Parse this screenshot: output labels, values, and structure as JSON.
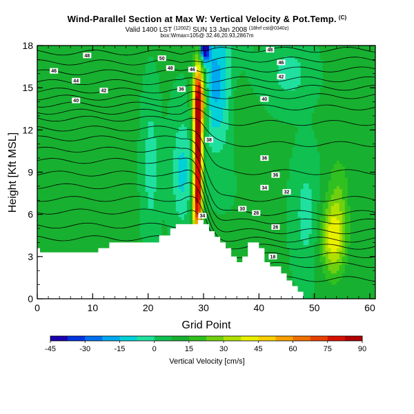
{
  "header": {
    "title": "Wind-Parallel Section at Max W: Vertical Velocity & Pot.Temp.",
    "title_mark": "(C)",
    "valid_prefix": "Valid 1400 LST",
    "valid_utc": "(1200Z)",
    "valid_date": "SUN 13 Jan 2008",
    "valid_cycle": "(18hrf cst@0340z)",
    "sub_line": "box:Wmax=105@ 32.46,20.93,2867m"
  },
  "colors": {
    "bg": "#ffffff",
    "terrain": "#ffffff",
    "contour": "#000000",
    "field_base": "#12b02e"
  },
  "chart_data": {
    "type": "heatmap",
    "title": "Wind-Parallel Section at Max W: Vertical Velocity & Pot.Temp.",
    "xlabel": "Grid Point",
    "ylabel": "Height [Kft MSL]",
    "xlim": [
      0,
      61
    ],
    "ylim": [
      0,
      18
    ],
    "xticks": [
      "0",
      "10",
      "20",
      "30",
      "40",
      "50",
      "60"
    ],
    "yticks": [
      "0",
      "3",
      "6",
      "9",
      "12",
      "15",
      "18"
    ],
    "colorbar": {
      "label": "Vertical Velocity [cm/s]",
      "min": -45,
      "max": 90,
      "ticks": [
        "-45",
        "-30",
        "-15",
        "0",
        "15",
        "30",
        "45",
        "60",
        "75",
        "90"
      ],
      "colors": [
        "#1a00b0",
        "#0033e0",
        "#0070f0",
        "#00a8f0",
        "#00d0d8",
        "#20e0a0",
        "#10c050",
        "#18b030",
        "#30c020",
        "#70d010",
        "#b0e000",
        "#e8f000",
        "#f8d000",
        "#f8a000",
        "#f07000",
        "#e84000",
        "#d81000",
        "#b00000"
      ]
    },
    "field": {
      "background": 8,
      "blobs": [
        {
          "x": 29.0,
          "y": 11.0,
          "sx": 0.55,
          "sy": 3.4,
          "amp": 88
        },
        {
          "x": 29.4,
          "y": 14.4,
          "sx": 0.9,
          "sy": 1.6,
          "amp": 42
        },
        {
          "x": 28.8,
          "y": 6.5,
          "sx": 0.6,
          "sy": 1.4,
          "amp": 40
        },
        {
          "x": 53.4,
          "y": 4.2,
          "sx": 1.5,
          "sy": 1.8,
          "amp": 32
        },
        {
          "x": 54.4,
          "y": 7.2,
          "sx": 1.4,
          "sy": 2.4,
          "amp": 12
        },
        {
          "x": 30.2,
          "y": 17.8,
          "sx": 0.5,
          "sy": 0.6,
          "amp": -60
        },
        {
          "x": 31.5,
          "y": 15.5,
          "sx": 1.6,
          "sy": 3.2,
          "amp": -22
        },
        {
          "x": 34.5,
          "y": 15.2,
          "sx": 1.8,
          "sy": 3.5,
          "amp": -14
        },
        {
          "x": 26.2,
          "y": 9.0,
          "sx": 1.3,
          "sy": 2.6,
          "amp": -18
        },
        {
          "x": 20.5,
          "y": 9.5,
          "sx": 0.9,
          "sy": 3.0,
          "amp": -14
        },
        {
          "x": 45.5,
          "y": 16.0,
          "sx": 2.4,
          "sy": 1.4,
          "amp": -12
        },
        {
          "x": 35.8,
          "y": 13.8,
          "sx": 1.2,
          "sy": 2.5,
          "amp": 12
        },
        {
          "x": 48.5,
          "y": 6.0,
          "sx": 1.4,
          "sy": 2.5,
          "amp": -12
        },
        {
          "x": 14.0,
          "y": 11.0,
          "sx": 1.2,
          "sy": 3.0,
          "amp": 5
        }
      ]
    },
    "terrain": [
      [
        0,
        3.3
      ],
      [
        2,
        3.3
      ],
      [
        2,
        3.3
      ],
      [
        11,
        3.3
      ],
      [
        11,
        3.6
      ],
      [
        13,
        3.6
      ],
      [
        13,
        4.0
      ],
      [
        22,
        4.0
      ],
      [
        22,
        4.5
      ],
      [
        24,
        4.5
      ],
      [
        24,
        5.0
      ],
      [
        25,
        5.0
      ],
      [
        25,
        5.3
      ],
      [
        29,
        5.3
      ],
      [
        29,
        5.6
      ],
      [
        30,
        5.6
      ],
      [
        30,
        5.3
      ],
      [
        31,
        5.3
      ],
      [
        31,
        4.8
      ],
      [
        32,
        4.8
      ],
      [
        32,
        4.4
      ],
      [
        33,
        4.4
      ],
      [
        33,
        4.0
      ],
      [
        34,
        4.0
      ],
      [
        34,
        3.6
      ],
      [
        35,
        3.6
      ],
      [
        35,
        3.0
      ],
      [
        36,
        3.0
      ],
      [
        36,
        2.6
      ],
      [
        37,
        2.6
      ],
      [
        37,
        3.0
      ],
      [
        38,
        3.0
      ],
      [
        38,
        4.0
      ],
      [
        40,
        4.0
      ],
      [
        40,
        3.6
      ],
      [
        41,
        3.6
      ],
      [
        41,
        2.6
      ],
      [
        42,
        2.6
      ],
      [
        42,
        2.3
      ],
      [
        44,
        2.3
      ],
      [
        44,
        1.8
      ],
      [
        45,
        1.8
      ],
      [
        45,
        1.3
      ],
      [
        46,
        1.3
      ],
      [
        46,
        0.9
      ],
      [
        47,
        0.9
      ],
      [
        47,
        0.5
      ],
      [
        48,
        0.5
      ],
      [
        48,
        0.0
      ]
    ],
    "left_step": [
      [
        0,
        3.6
      ],
      [
        0.5,
        3.6
      ],
      [
        0.5,
        3.3
      ]
    ],
    "contour_levels": [
      {
        "value": 30,
        "upstream": 4.3,
        "downstream": 1.4
      },
      {
        "value": 31,
        "upstream": 5.2,
        "downstream": 2.4
      },
      {
        "value": 32,
        "upstream": 6.2,
        "downstream": 3.1
      },
      {
        "value": 33,
        "upstream": 7.1,
        "downstream": 3.7
      },
      {
        "value": 34,
        "upstream": 8.0,
        "downstream": 4.2
      },
      {
        "value": 35,
        "upstream": 8.9,
        "downstream": 4.8
      },
      {
        "value": 36,
        "upstream": 9.8,
        "downstream": 5.5
      },
      {
        "value": 37,
        "upstream": 10.6,
        "downstream": 6.1
      },
      {
        "value": 38,
        "upstream": 11.4,
        "downstream": 7.1
      },
      {
        "value": 39,
        "upstream": 12.1,
        "downstream": 9.0
      },
      {
        "value": 40,
        "upstream": 12.8,
        "downstream": 11.0
      },
      {
        "value": 41,
        "upstream": 13.3,
        "downstream": 12.5
      },
      {
        "value": 42,
        "upstream": 13.8,
        "downstream": 13.6
      },
      {
        "value": 43,
        "upstream": 14.3,
        "downstream": 14.4
      },
      {
        "value": 44,
        "upstream": 14.8,
        "downstream": 15.0
      },
      {
        "value": 45,
        "upstream": 15.4,
        "downstream": 15.6
      },
      {
        "value": 46,
        "upstream": 16.1,
        "downstream": 16.3
      },
      {
        "value": 47,
        "upstream": 16.8,
        "downstream": 17.0
      },
      {
        "value": 48,
        "upstream": 17.5,
        "downstream": 17.7
      }
    ],
    "contour_labels": [
      {
        "text": "48",
        "x": 9.0,
        "y": 17.3
      },
      {
        "text": "46",
        "x": 3.0,
        "y": 16.2
      },
      {
        "text": "44",
        "x": 7.0,
        "y": 15.5
      },
      {
        "text": "42",
        "x": 12.0,
        "y": 14.8
      },
      {
        "text": "40",
        "x": 7.0,
        "y": 14.1
      },
      {
        "text": "50",
        "x": 22.5,
        "y": 17.1
      },
      {
        "text": "48",
        "x": 24.0,
        "y": 16.4
      },
      {
        "text": "46",
        "x": 28.0,
        "y": 16.3
      },
      {
        "text": "36",
        "x": 26.0,
        "y": 14.9
      },
      {
        "text": "38",
        "x": 31.0,
        "y": 11.3
      },
      {
        "text": "48",
        "x": 42.0,
        "y": 17.7
      },
      {
        "text": "46",
        "x": 44.0,
        "y": 16.8
      },
      {
        "text": "42",
        "x": 44.0,
        "y": 15.8
      },
      {
        "text": "40",
        "x": 41.0,
        "y": 14.2
      },
      {
        "text": "36",
        "x": 41.0,
        "y": 10.0
      },
      {
        "text": "36",
        "x": 43.0,
        "y": 8.8
      },
      {
        "text": "34",
        "x": 41.0,
        "y": 7.9
      },
      {
        "text": "32",
        "x": 45.0,
        "y": 7.6
      },
      {
        "text": "30",
        "x": 37.0,
        "y": 6.4
      },
      {
        "text": "28",
        "x": 39.5,
        "y": 6.1
      },
      {
        "text": "26",
        "x": 43.0,
        "y": 5.1
      },
      {
        "text": "18",
        "x": 42.5,
        "y": 3.0
      },
      {
        "text": "34",
        "x": 29.8,
        "y": 5.9
      }
    ]
  }
}
